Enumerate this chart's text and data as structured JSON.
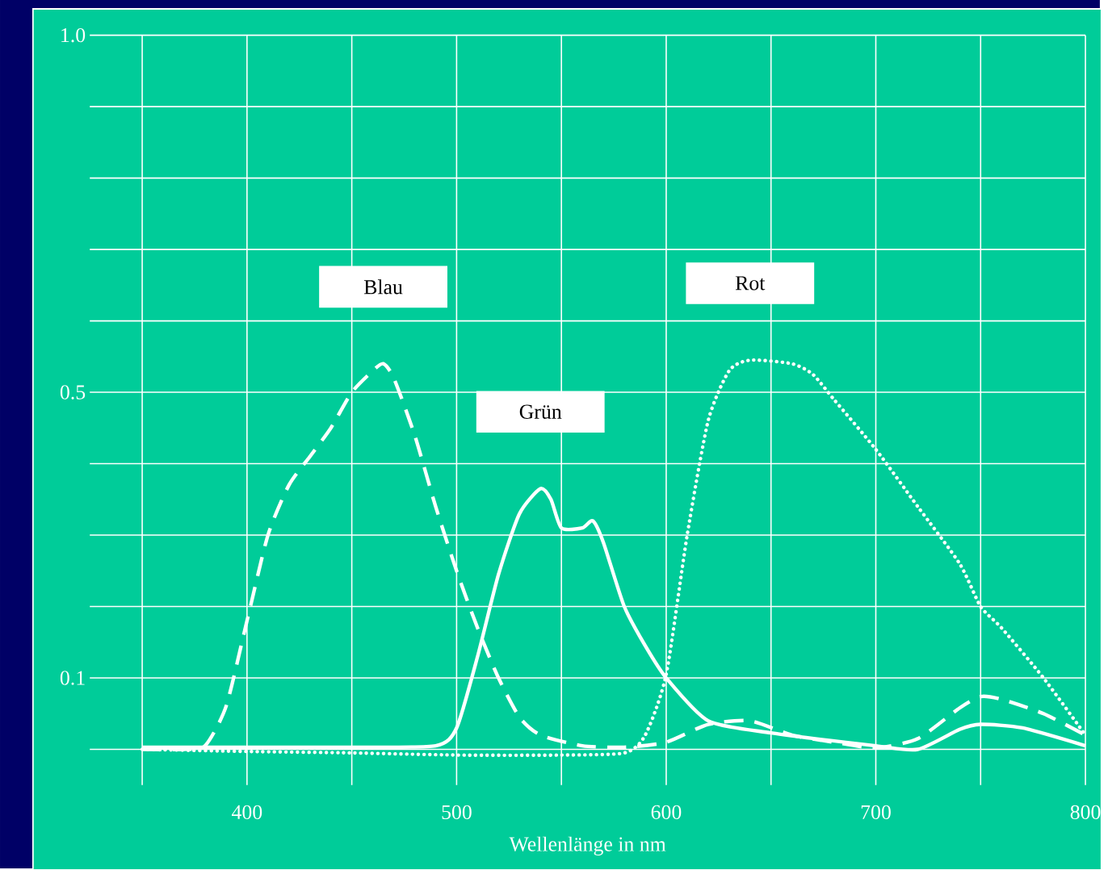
{
  "chart_data": {
    "type": "line",
    "xlabel": "Wellenlänge in nm",
    "xlim": [
      325,
      800
    ],
    "ylim": [
      -0.05,
      1.0
    ],
    "xticks": [
      {
        "value": 350,
        "label": null
      },
      400,
      {
        "value": 450,
        "label": null
      },
      500,
      {
        "value": 550,
        "label": null
      },
      600,
      {
        "value": 650,
        "label": null
      },
      700,
      {
        "value": 750,
        "label": null
      },
      800
    ],
    "yticks": [
      {
        "value": 0,
        "label": null
      },
      0.1,
      {
        "value": 0.2,
        "label": null
      },
      {
        "value": 0.3,
        "label": null
      },
      {
        "value": 0.4,
        "label": null
      },
      0.5,
      {
        "value": 0.6,
        "label": null
      },
      {
        "value": 0.7,
        "label": null
      },
      {
        "value": 0.8,
        "label": null
      },
      {
        "value": 0.9,
        "label": null
      },
      {
        "value": 1.0,
        "label": "1.0"
      }
    ],
    "grid": true,
    "marker": "none",
    "series": [
      {
        "name": "Blau",
        "color": "#ffffff",
        "line_style": "dashed",
        "x": [
          350,
          370,
          380,
          390,
          400,
          410,
          420,
          430,
          440,
          450,
          460,
          465,
          470,
          480,
          490,
          500,
          510,
          520,
          530,
          540,
          560,
          580,
          600,
          620,
          640,
          660,
          680,
          700,
          720,
          740,
          750,
          760,
          780,
          800
        ],
        "values": [
          0,
          0,
          0.005,
          0.06,
          0.18,
          0.3,
          0.37,
          0.41,
          0.45,
          0.5,
          0.53,
          0.54,
          0.52,
          0.44,
          0.34,
          0.25,
          0.17,
          0.1,
          0.045,
          0.02,
          0.005,
          0.003,
          0.01,
          0.035,
          0.04,
          0.02,
          0.01,
          0.002,
          0.015,
          0.058,
          0.074,
          0.07,
          0.05,
          0.02
        ]
      },
      {
        "name": "Grün",
        "color": "#ffffff",
        "line_style": "solid",
        "x": [
          350,
          400,
          450,
          490,
          500,
          510,
          520,
          530,
          540,
          545,
          550,
          560,
          565,
          570,
          580,
          590,
          600,
          620,
          650,
          700,
          720,
          740,
          750,
          770,
          800
        ],
        "values": [
          0.003,
          0.003,
          0.003,
          0.005,
          0.03,
          0.13,
          0.245,
          0.33,
          0.365,
          0.35,
          0.31,
          0.31,
          0.32,
          0.29,
          0.2,
          0.145,
          0.1,
          0.04,
          0.023,
          0.005,
          0.0,
          0.028,
          0.035,
          0.03,
          0.005
        ]
      },
      {
        "name": "Rot",
        "color": "#ffffff",
        "line_style": "dotted",
        "x": [
          350,
          400,
          450,
          500,
          550,
          580,
          590,
          600,
          610,
          620,
          630,
          640,
          660,
          670,
          680,
          700,
          720,
          740,
          750,
          760,
          780,
          800
        ],
        "values": [
          0,
          -0.003,
          -0.005,
          -0.008,
          -0.008,
          -0.005,
          0.02,
          0.105,
          0.3,
          0.46,
          0.53,
          0.545,
          0.54,
          0.525,
          0.49,
          0.42,
          0.34,
          0.26,
          0.2,
          0.17,
          0.1,
          0.02
        ]
      }
    ]
  }
}
